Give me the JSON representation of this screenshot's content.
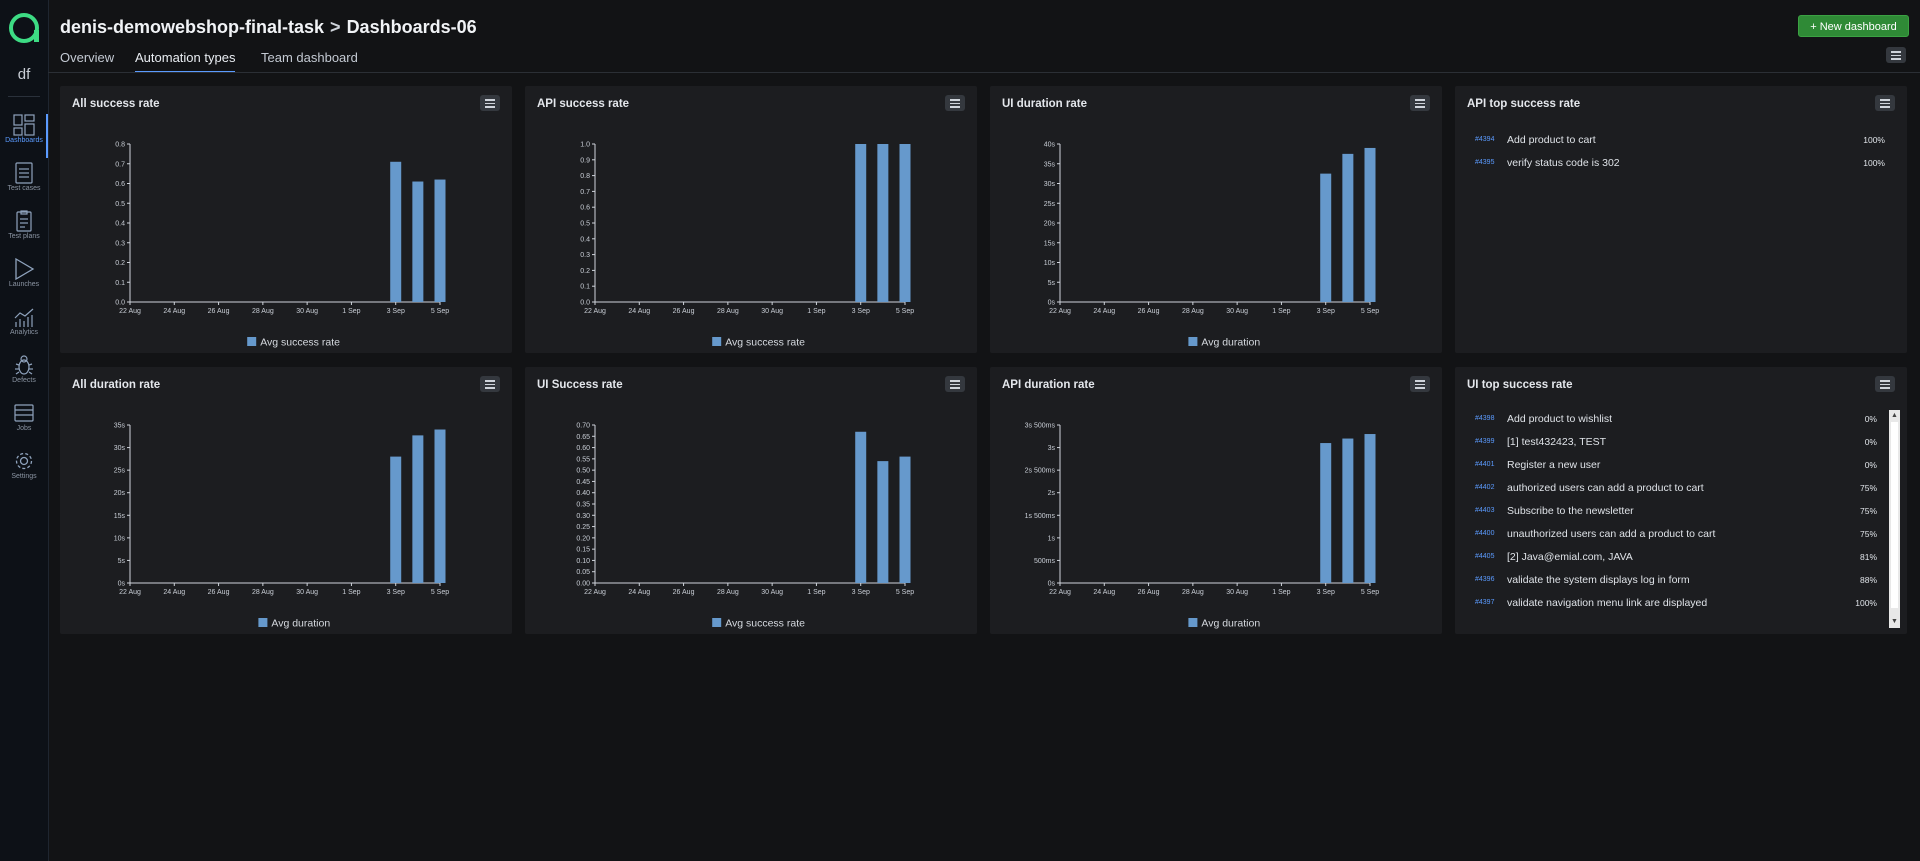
{
  "sidebar": {
    "project_short": "df",
    "items": [
      {
        "label": "Dashboards",
        "icon": "dashboard-icon",
        "active": true
      },
      {
        "label": "Test cases",
        "icon": "test-cases-icon"
      },
      {
        "label": "Test plans",
        "icon": "test-plans-icon"
      },
      {
        "label": "Launches",
        "icon": "play-icon"
      },
      {
        "label": "Analytics",
        "icon": "analytics-icon"
      },
      {
        "label": "Defects",
        "icon": "bug-icon"
      },
      {
        "label": "Jobs",
        "icon": "jobs-icon"
      },
      {
        "label": "Settings",
        "icon": "gear-icon"
      }
    ]
  },
  "header": {
    "project": "denis-demowebshop-final-task",
    "separator": ">",
    "dashboard": "Dashboards-06",
    "new_button": "New dashboard",
    "tabs": [
      {
        "label": "Overview"
      },
      {
        "label": "Automation types",
        "active": true
      },
      {
        "label": "Team dashboard"
      }
    ]
  },
  "colors": {
    "accent": "#5b9bff",
    "bar": "#6699cc",
    "button": "#2f8a36"
  },
  "chart_data": [
    {
      "id": "all_success",
      "type": "bar",
      "title": "All success rate",
      "categories": [
        "22 Aug",
        "24 Aug",
        "26 Aug",
        "28 Aug",
        "30 Aug",
        "1 Sep",
        "3 Sep",
        "5 Sep"
      ],
      "bars": [
        {
          "x": "3 Sep",
          "value": 0.71
        },
        {
          "x": "4 Sep",
          "value": 0.61
        },
        {
          "x": "5 Sep",
          "value": 0.62
        }
      ],
      "yticks": [
        "0.0",
        "0.1",
        "0.2",
        "0.3",
        "0.4",
        "0.5",
        "0.6",
        "0.7",
        "0.8"
      ],
      "ylim": [
        0,
        0.8
      ],
      "legend": "Avg success rate"
    },
    {
      "id": "api_success",
      "type": "bar",
      "title": "API success rate",
      "categories": [
        "22 Aug",
        "24 Aug",
        "26 Aug",
        "28 Aug",
        "30 Aug",
        "1 Sep",
        "3 Sep",
        "5 Sep"
      ],
      "bars": [
        {
          "x": "3 Sep",
          "value": 1.0
        },
        {
          "x": "4 Sep",
          "value": 1.0
        },
        {
          "x": "5 Sep",
          "value": 1.0
        }
      ],
      "yticks": [
        "0.0",
        "0.1",
        "0.2",
        "0.3",
        "0.4",
        "0.5",
        "0.6",
        "0.7",
        "0.8",
        "0.9",
        "1.0"
      ],
      "ylim": [
        0,
        1.0
      ],
      "legend": "Avg success rate"
    },
    {
      "id": "ui_duration",
      "type": "bar",
      "title": "UI duration rate",
      "categories": [
        "22 Aug",
        "24 Aug",
        "26 Aug",
        "28 Aug",
        "30 Aug",
        "1 Sep",
        "3 Sep",
        "5 Sep"
      ],
      "bars": [
        {
          "x": "3 Sep",
          "value": 32.5
        },
        {
          "x": "4 Sep",
          "value": 37.5
        },
        {
          "x": "5 Sep",
          "value": 39
        }
      ],
      "yticks": [
        "0s",
        "5s",
        "10s",
        "15s",
        "20s",
        "25s",
        "30s",
        "35s",
        "40s"
      ],
      "ylim": [
        0,
        40
      ],
      "legend": "Avg duration"
    },
    {
      "id": "all_duration",
      "type": "bar",
      "title": "All duration rate",
      "categories": [
        "22 Aug",
        "24 Aug",
        "26 Aug",
        "28 Aug",
        "30 Aug",
        "1 Sep",
        "3 Sep",
        "5 Sep"
      ],
      "bars": [
        {
          "x": "3 Sep",
          "value": 28
        },
        {
          "x": "4 Sep",
          "value": 32.7
        },
        {
          "x": "5 Sep",
          "value": 34
        }
      ],
      "yticks": [
        "0s",
        "5s",
        "10s",
        "15s",
        "20s",
        "25s",
        "30s",
        "35s"
      ],
      "ylim": [
        0,
        35
      ],
      "legend": "Avg duration"
    },
    {
      "id": "ui_success",
      "type": "bar",
      "title": "UI Success rate",
      "categories": [
        "22 Aug",
        "24 Aug",
        "26 Aug",
        "28 Aug",
        "30 Aug",
        "1 Sep",
        "3 Sep",
        "5 Sep"
      ],
      "bars": [
        {
          "x": "3 Sep",
          "value": 0.67
        },
        {
          "x": "4 Sep",
          "value": 0.54
        },
        {
          "x": "5 Sep",
          "value": 0.56
        }
      ],
      "yticks": [
        "0.00",
        "0.05",
        "0.10",
        "0.15",
        "0.20",
        "0.25",
        "0.30",
        "0.35",
        "0.40",
        "0.45",
        "0.50",
        "0.55",
        "0.60",
        "0.65",
        "0.70"
      ],
      "ylim": [
        0,
        0.7
      ],
      "legend": "Avg success rate"
    },
    {
      "id": "api_duration",
      "type": "bar",
      "title": "API duration rate",
      "categories": [
        "22 Aug",
        "24 Aug",
        "26 Aug",
        "28 Aug",
        "30 Aug",
        "1 Sep",
        "3 Sep",
        "5 Sep"
      ],
      "bars": [
        {
          "x": "3 Sep",
          "value": 3.1
        },
        {
          "x": "4 Sep",
          "value": 3.2
        },
        {
          "x": "5 Sep",
          "value": 3.3
        }
      ],
      "yticks": [
        "0s",
        "500ms",
        "1s",
        "1s 500ms",
        "2s",
        "2s 500ms",
        "3s",
        "3s 500ms"
      ],
      "ylim": [
        0,
        3.5
      ],
      "legend": "Avg duration"
    }
  ],
  "api_top": {
    "title": "API top success rate",
    "rows": [
      {
        "id": "#4394",
        "name": "Add product to cart",
        "pct": "100%"
      },
      {
        "id": "#4395",
        "name": "verify status code is 302",
        "pct": "100%"
      }
    ]
  },
  "ui_top": {
    "title": "UI top success rate",
    "rows": [
      {
        "id": "#4398",
        "name": "Add product to wishlist",
        "pct": "0%"
      },
      {
        "id": "#4399",
        "name": "[1] test432423, TEST",
        "pct": "0%"
      },
      {
        "id": "#4401",
        "name": "Register a new user",
        "pct": "0%"
      },
      {
        "id": "#4402",
        "name": "authorized users can add a product to cart",
        "pct": "75%"
      },
      {
        "id": "#4403",
        "name": "Subscribe to the newsletter",
        "pct": "75%"
      },
      {
        "id": "#4400",
        "name": "unauthorized users can add a product to cart",
        "pct": "75%"
      },
      {
        "id": "#4405",
        "name": "[2] Java@emial.com, JAVA",
        "pct": "81%"
      },
      {
        "id": "#4396",
        "name": "validate the system displays log in form",
        "pct": "88%"
      },
      {
        "id": "#4397",
        "name": "validate navigation menu link are displayed",
        "pct": "100%"
      }
    ]
  }
}
